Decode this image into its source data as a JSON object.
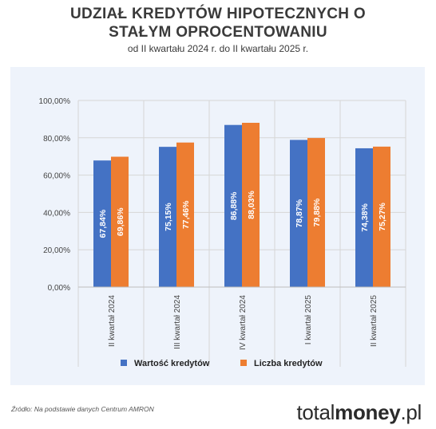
{
  "header": {
    "title_line1": "UDZIAŁ KREDYTÓW HIPOTECZNYCH O",
    "title_line2": "STAŁYM OPROCENTOWANIU",
    "subtitle": "od II kwartału 2024 r. do II kwartału 2025 r."
  },
  "chart_data": {
    "type": "bar",
    "categories": [
      "II kwartał 2024",
      "III kwartał 2024",
      "IV kwartał 2024",
      "I kwartał 2025",
      "II kwartał 2025"
    ],
    "series": [
      {
        "name": "Wartość kredytów",
        "color": "#4472c4",
        "values": [
          67.84,
          75.15,
          86.88,
          78.87,
          74.38
        ],
        "labels": [
          "67,84%",
          "75,15%",
          "86,88%",
          "78,87%",
          "74,38%"
        ]
      },
      {
        "name": "Liczba kredytów",
        "color": "#ed7d31",
        "values": [
          69.86,
          77.46,
          88.03,
          79.88,
          75.27
        ],
        "labels": [
          "69,86%",
          "77,46%",
          "88,03%",
          "79,88%",
          "75,27%"
        ]
      }
    ],
    "yticks": [
      0,
      20,
      40,
      60,
      80,
      100
    ],
    "ytick_labels": [
      "0,00%",
      "20,00%",
      "40,00%",
      "60,00%",
      "80,00%",
      "100,00%"
    ],
    "ylim": [
      0,
      100
    ],
    "grid": true,
    "legend_position": "bottom"
  },
  "footer": {
    "source": "Źródło: Na podstawie danych Centrum AMRON",
    "brand_light": "total",
    "brand_bold": "money",
    "brand_suffix": ".pl"
  }
}
